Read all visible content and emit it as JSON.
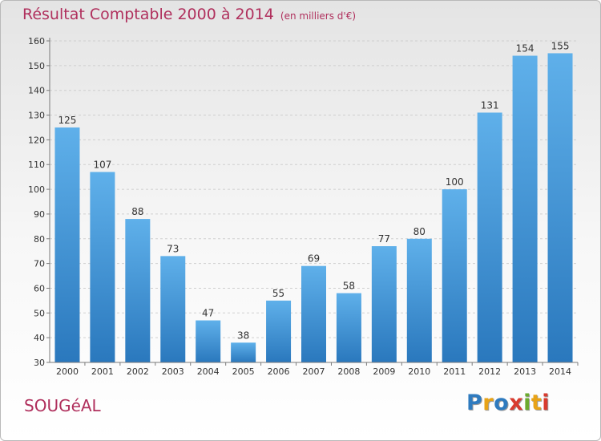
{
  "title": "Résultat Comptable 2000 à 2014",
  "subtitle": "(en milliers d'€)",
  "place": "SOUGéAL",
  "logo": {
    "letters": [
      "P",
      "r",
      "o",
      "x",
      "i",
      "t",
      "i"
    ],
    "colors": [
      "#2f7bbf",
      "#e8a317",
      "#2f7bbf",
      "#d93b2f",
      "#6cab2f",
      "#e8a317",
      "#d93b2f"
    ]
  },
  "chart_data": {
    "type": "bar",
    "categories": [
      "2000",
      "2001",
      "2002",
      "2003",
      "2004",
      "2005",
      "2006",
      "2007",
      "2008",
      "2009",
      "2010",
      "2011",
      "2012",
      "2013",
      "2014"
    ],
    "values": [
      125,
      107,
      88,
      73,
      47,
      38,
      55,
      69,
      58,
      77,
      80,
      100,
      131,
      154,
      155
    ],
    "title": "Résultat Comptable 2000 à 2014",
    "xlabel": "",
    "ylabel": "",
    "ylim": [
      30,
      160
    ],
    "yticks": [
      30,
      40,
      50,
      60,
      70,
      80,
      90,
      100,
      110,
      120,
      130,
      140,
      150,
      160
    ],
    "grid": true,
    "bar_color": "#3a8fd6"
  }
}
